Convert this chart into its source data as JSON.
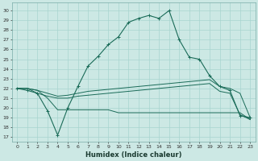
{
  "xlabel": "Humidex (Indice chaleur)",
  "bg_color": "#cce8e4",
  "grid_color": "#a8d4cf",
  "line_color": "#1a6b58",
  "x_ticks": [
    0,
    1,
    2,
    3,
    4,
    5,
    6,
    7,
    8,
    9,
    10,
    11,
    12,
    13,
    14,
    15,
    16,
    17,
    18,
    19,
    20,
    21,
    22,
    23
  ],
  "y_ticks": [
    17,
    18,
    19,
    20,
    21,
    22,
    23,
    24,
    25,
    26,
    27,
    28,
    29,
    30
  ],
  "xlim": [
    -0.5,
    23.5
  ],
  "ylim": [
    16.5,
    30.8
  ],
  "series1_x": [
    0,
    1,
    2,
    3,
    4,
    5,
    6,
    7,
    8,
    9,
    10,
    11,
    12,
    13,
    14,
    15,
    16,
    17,
    18,
    19,
    20,
    21,
    22,
    23
  ],
  "series1_y": [
    22.0,
    21.8,
    21.5,
    19.7,
    17.2,
    20.0,
    22.2,
    24.3,
    25.3,
    26.5,
    27.3,
    28.8,
    29.2,
    29.5,
    29.2,
    30.0,
    27.0,
    25.2,
    25.0,
    23.3,
    22.2,
    21.8,
    19.2,
    19.0
  ],
  "series2_x": [
    0,
    1,
    2,
    3,
    4,
    5,
    6,
    7,
    8,
    9,
    10,
    11,
    12,
    13,
    14,
    15,
    16,
    17,
    18,
    19,
    20,
    21,
    22,
    23
  ],
  "series2_y": [
    22.0,
    22.0,
    21.8,
    21.5,
    21.2,
    21.3,
    21.5,
    21.7,
    21.8,
    21.9,
    22.0,
    22.1,
    22.2,
    22.3,
    22.4,
    22.5,
    22.6,
    22.7,
    22.8,
    22.9,
    22.2,
    22.0,
    21.5,
    19.0
  ],
  "series3_x": [
    0,
    1,
    2,
    3,
    4,
    5,
    6,
    7,
    8,
    9,
    10,
    11,
    12,
    13,
    14,
    15,
    16,
    17,
    18,
    19,
    20,
    21,
    22,
    23
  ],
  "series3_y": [
    22.0,
    22.0,
    21.5,
    21.2,
    21.0,
    21.0,
    21.2,
    21.3,
    21.4,
    21.5,
    21.6,
    21.7,
    21.8,
    21.9,
    22.0,
    22.1,
    22.2,
    22.3,
    22.4,
    22.5,
    21.7,
    21.5,
    19.3,
    18.8
  ],
  "series4_x": [
    0,
    1,
    2,
    3,
    4,
    5,
    6,
    7,
    8,
    9,
    10,
    11,
    12,
    13,
    14,
    15,
    16,
    17,
    18,
    19,
    20,
    21,
    22,
    23
  ],
  "series4_y": [
    22.0,
    22.0,
    21.8,
    21.0,
    19.8,
    19.8,
    19.8,
    19.8,
    19.8,
    19.8,
    19.5,
    19.5,
    19.5,
    19.5,
    19.5,
    19.5,
    19.5,
    19.5,
    19.5,
    19.5,
    19.5,
    19.5,
    19.5,
    18.8
  ]
}
